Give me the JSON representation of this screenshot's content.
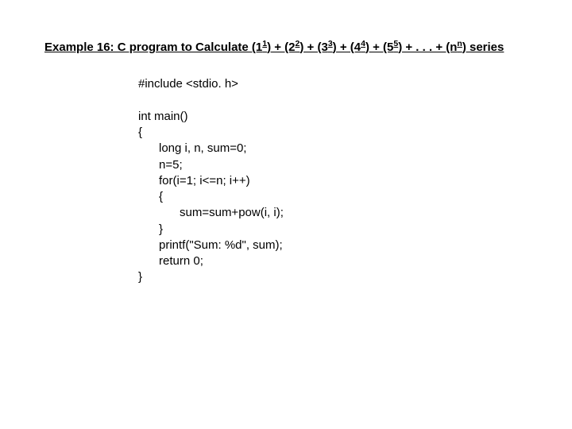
{
  "title": {
    "prefix": "Example 16: C program to Calculate (1",
    "s1": "1",
    "t1": ") + (2",
    "s2": "2",
    "t2": ") + (3",
    "s3": "3",
    "t3": ") + (4",
    "s4": "4",
    "t4": ") + (5",
    "s5": "5",
    "t5": ") + . . . + (n",
    "s6": "n",
    "t6": ") series"
  },
  "code": {
    "l1": "#include <stdio. h>",
    "l2": "int main()",
    "l3": "{",
    "l4": "long i, n, sum=0;",
    "l5": "n=5;",
    "l6": "for(i=1; i<=n; i++)",
    "l7": "{",
    "l8": "sum=sum+pow(i, i);",
    "l9": "}",
    "l10": "printf(\"Sum: %d\", sum);",
    "l11": "return 0;",
    "l12": "}"
  },
  "style": {
    "text_color": "#000000",
    "background_color": "#ffffff",
    "title_fontsize": 15,
    "code_fontsize": 15,
    "font_family": "Arial"
  }
}
